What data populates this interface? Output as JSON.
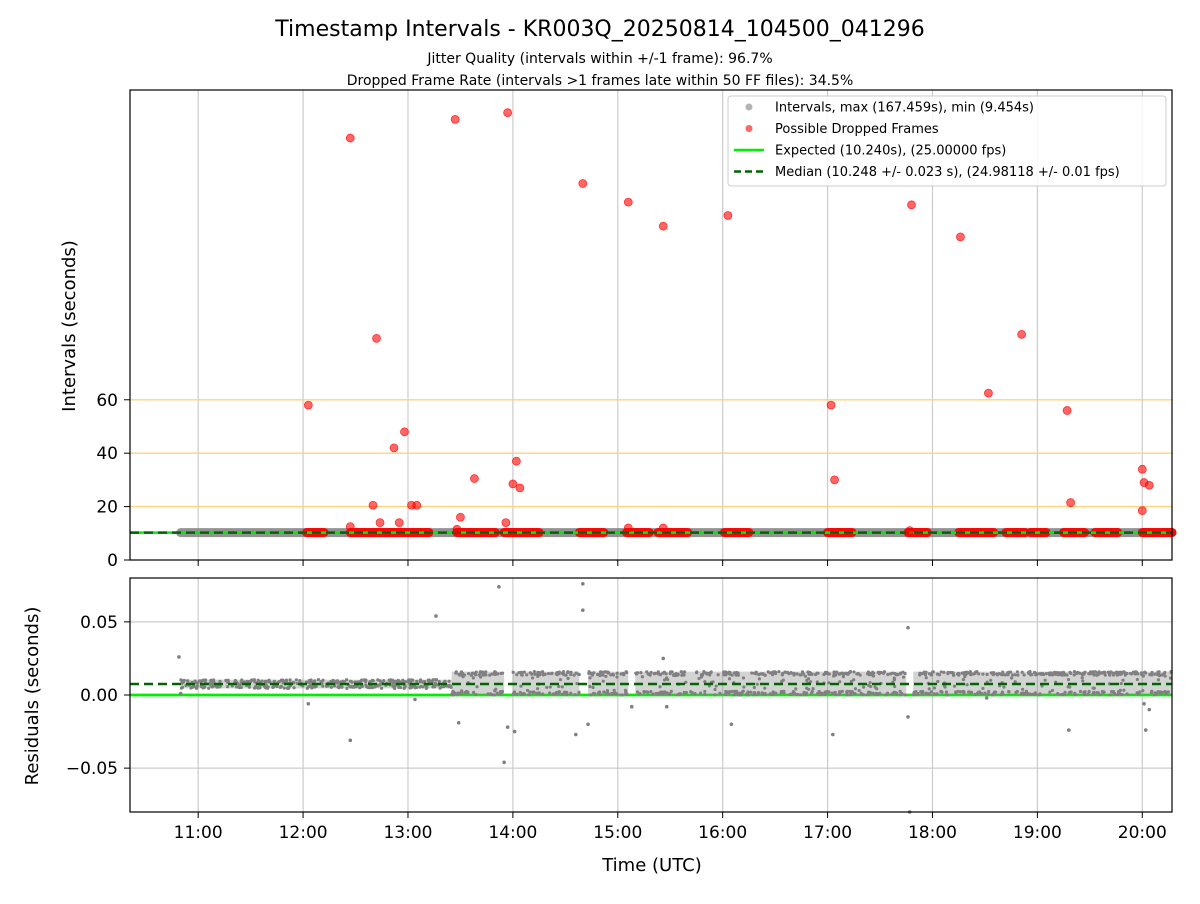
{
  "figure": {
    "title": "Timestamp Intervals - KR003Q_20250814_104500_041296",
    "subtitle_1": "Jitter Quality (intervals within +/-1 frame): 96.7%",
    "subtitle_2": "Dropped Frame Rate (intervals >1 frames late within 50 FF files): 34.5%"
  },
  "colors": {
    "interval_points": "#808080",
    "dropped_points": "#ff0000",
    "expected_line": "#00ee00",
    "median_line": "#006400",
    "threshold_lines": "#ffd27a",
    "grid": "#cccccc"
  },
  "chart_data": [
    {
      "type": "scatter",
      "name": "intervals-panel",
      "ylabel": "Intervals (seconds)",
      "xlabel": "",
      "ylim": [
        0,
        176
      ],
      "xlim": [
        "10:21",
        "20:17"
      ],
      "yticks": [
        0,
        20,
        40,
        60
      ],
      "grid": "vertical",
      "legend_position": "top-right",
      "threshold_lines": [
        20,
        40,
        60
      ],
      "legend": [
        {
          "kind": "interval",
          "label": "Intervals, max (167.459s), min (9.454s)"
        },
        {
          "kind": "dropped",
          "label": "Possible Dropped Frames"
        },
        {
          "kind": "expected",
          "label": "Expected (10.240s), (25.00000 fps)"
        },
        {
          "kind": "median",
          "label": "Median (10.248 +/- 0.023 s), (24.98118 +/- 0.01 fps)"
        }
      ],
      "expected_value": 10.24,
      "median_value": 10.248,
      "interval_baseline": {
        "start": "10:50",
        "end": "20:17",
        "value": 10.25
      },
      "dropped_clusters": [
        {
          "start": "12:02",
          "end": "12:12",
          "value": 10.3
        },
        {
          "start": "12:27",
          "end": "13:12",
          "value": 10.3
        },
        {
          "start": "13:28",
          "end": "13:50",
          "value": 10.3
        },
        {
          "start": "13:55",
          "end": "14:15",
          "value": 10.3
        },
        {
          "start": "14:38",
          "end": "14:52",
          "value": 10.3
        },
        {
          "start": "15:05",
          "end": "15:18",
          "value": 10.3
        },
        {
          "start": "15:23",
          "end": "15:40",
          "value": 10.3
        },
        {
          "start": "16:01",
          "end": "16:15",
          "value": 10.3
        },
        {
          "start": "17:00",
          "end": "17:14",
          "value": 10.3
        },
        {
          "start": "17:46",
          "end": "17:57",
          "value": 10.3
        },
        {
          "start": "18:15",
          "end": "18:35",
          "value": 10.3
        },
        {
          "start": "18:42",
          "end": "18:53",
          "value": 10.3
        },
        {
          "start": "18:56",
          "end": "19:05",
          "value": 10.3
        },
        {
          "start": "19:15",
          "end": "19:27",
          "value": 10.3
        },
        {
          "start": "19:33",
          "end": "19:46",
          "value": 10.3
        },
        {
          "start": "20:00",
          "end": "20:17",
          "value": 10.3
        }
      ],
      "dropped_frames": [
        {
          "x": "12:03",
          "y": 58
        },
        {
          "x": "12:27",
          "y": 158
        },
        {
          "x": "12:27",
          "y": 12.5
        },
        {
          "x": "12:40",
          "y": 20.5
        },
        {
          "x": "12:42",
          "y": 83
        },
        {
          "x": "12:44",
          "y": 14
        },
        {
          "x": "12:52",
          "y": 42
        },
        {
          "x": "12:55",
          "y": 14
        },
        {
          "x": "12:58",
          "y": 48
        },
        {
          "x": "13:02",
          "y": 20.5
        },
        {
          "x": "13:05",
          "y": 20.5
        },
        {
          "x": "13:27",
          "y": 165
        },
        {
          "x": "13:28",
          "y": 11.5
        },
        {
          "x": "13:30",
          "y": 16
        },
        {
          "x": "13:38",
          "y": 30.5
        },
        {
          "x": "13:57",
          "y": 167.5
        },
        {
          "x": "13:56",
          "y": 14
        },
        {
          "x": "14:00",
          "y": 28.5
        },
        {
          "x": "14:02",
          "y": 37
        },
        {
          "x": "14:04",
          "y": 27
        },
        {
          "x": "14:40",
          "y": 141
        },
        {
          "x": "15:06",
          "y": 134
        },
        {
          "x": "15:06",
          "y": 12
        },
        {
          "x": "15:26",
          "y": 125
        },
        {
          "x": "15:26",
          "y": 12
        },
        {
          "x": "16:03",
          "y": 129
        },
        {
          "x": "17:02",
          "y": 58
        },
        {
          "x": "17:04",
          "y": 30
        },
        {
          "x": "17:48",
          "y": 133
        },
        {
          "x": "17:47",
          "y": 11
        },
        {
          "x": "18:16",
          "y": 121
        },
        {
          "x": "18:32",
          "y": 62.5
        },
        {
          "x": "18:51",
          "y": 84.5
        },
        {
          "x": "19:17",
          "y": 56
        },
        {
          "x": "19:19",
          "y": 21.5
        },
        {
          "x": "20:00",
          "y": 34
        },
        {
          "x": "20:01",
          "y": 29
        },
        {
          "x": "20:04",
          "y": 28
        },
        {
          "x": "20:00",
          "y": 18.5
        }
      ]
    },
    {
      "type": "scatter",
      "name": "residuals-panel",
      "xlabel": "Time (UTC)",
      "ylabel": "Residuals (seconds)",
      "ylim": [
        -0.08,
        0.08
      ],
      "xlim": [
        "10:21",
        "20:17"
      ],
      "yticks": [
        -0.05,
        0.0,
        0.05
      ],
      "ytick_labels": [
        "−0.05",
        "0.00",
        "0.05"
      ],
      "xticks": [
        "11:00",
        "12:00",
        "13:00",
        "14:00",
        "15:00",
        "16:00",
        "17:00",
        "18:00",
        "19:00",
        "20:00"
      ],
      "grid": "both",
      "expected_value": 0.0,
      "median_value": 0.0075,
      "early_band": {
        "start": "10:50",
        "end": "13:25",
        "low": 0.0045,
        "high": 0.0105
      },
      "segments": [
        {
          "start": "13:25",
          "end": "13:55",
          "low": 0.0,
          "high": 0.016
        },
        {
          "start": "14:00",
          "end": "14:38",
          "low": 0.0,
          "high": 0.016
        },
        {
          "start": "14:43",
          "end": "15:06",
          "low": 0.0,
          "high": 0.016
        },
        {
          "start": "15:10",
          "end": "17:45",
          "low": 0.0,
          "high": 0.016
        },
        {
          "start": "17:49",
          "end": "20:17",
          "low": 0.0,
          "high": 0.016
        }
      ],
      "outliers": [
        {
          "x": "10:49",
          "y": 0.026
        },
        {
          "x": "10:50",
          "y": 0.001
        },
        {
          "x": "12:03",
          "y": -0.006
        },
        {
          "x": "12:27",
          "y": -0.031
        },
        {
          "x": "13:04",
          "y": -0.003
        },
        {
          "x": "13:16",
          "y": 0.054
        },
        {
          "x": "13:29",
          "y": -0.019
        },
        {
          "x": "13:52",
          "y": 0.074
        },
        {
          "x": "13:55",
          "y": -0.046
        },
        {
          "x": "13:57",
          "y": -0.022
        },
        {
          "x": "14:01",
          "y": -0.025
        },
        {
          "x": "14:36",
          "y": -0.027
        },
        {
          "x": "14:40",
          "y": 0.058
        },
        {
          "x": "14:40",
          "y": 0.076
        },
        {
          "x": "14:43",
          "y": -0.02
        },
        {
          "x": "15:08",
          "y": -0.008
        },
        {
          "x": "15:26",
          "y": 0.025
        },
        {
          "x": "15:28",
          "y": -0.008
        },
        {
          "x": "16:05",
          "y": -0.02
        },
        {
          "x": "17:03",
          "y": -0.027
        },
        {
          "x": "17:46",
          "y": 0.046
        },
        {
          "x": "17:46",
          "y": -0.015
        },
        {
          "x": "17:47",
          "y": -0.08
        },
        {
          "x": "18:31",
          "y": -0.002
        },
        {
          "x": "19:18",
          "y": -0.024
        },
        {
          "x": "20:01",
          "y": -0.006
        },
        {
          "x": "20:02",
          "y": -0.024
        },
        {
          "x": "20:04",
          "y": -0.01
        }
      ]
    }
  ]
}
